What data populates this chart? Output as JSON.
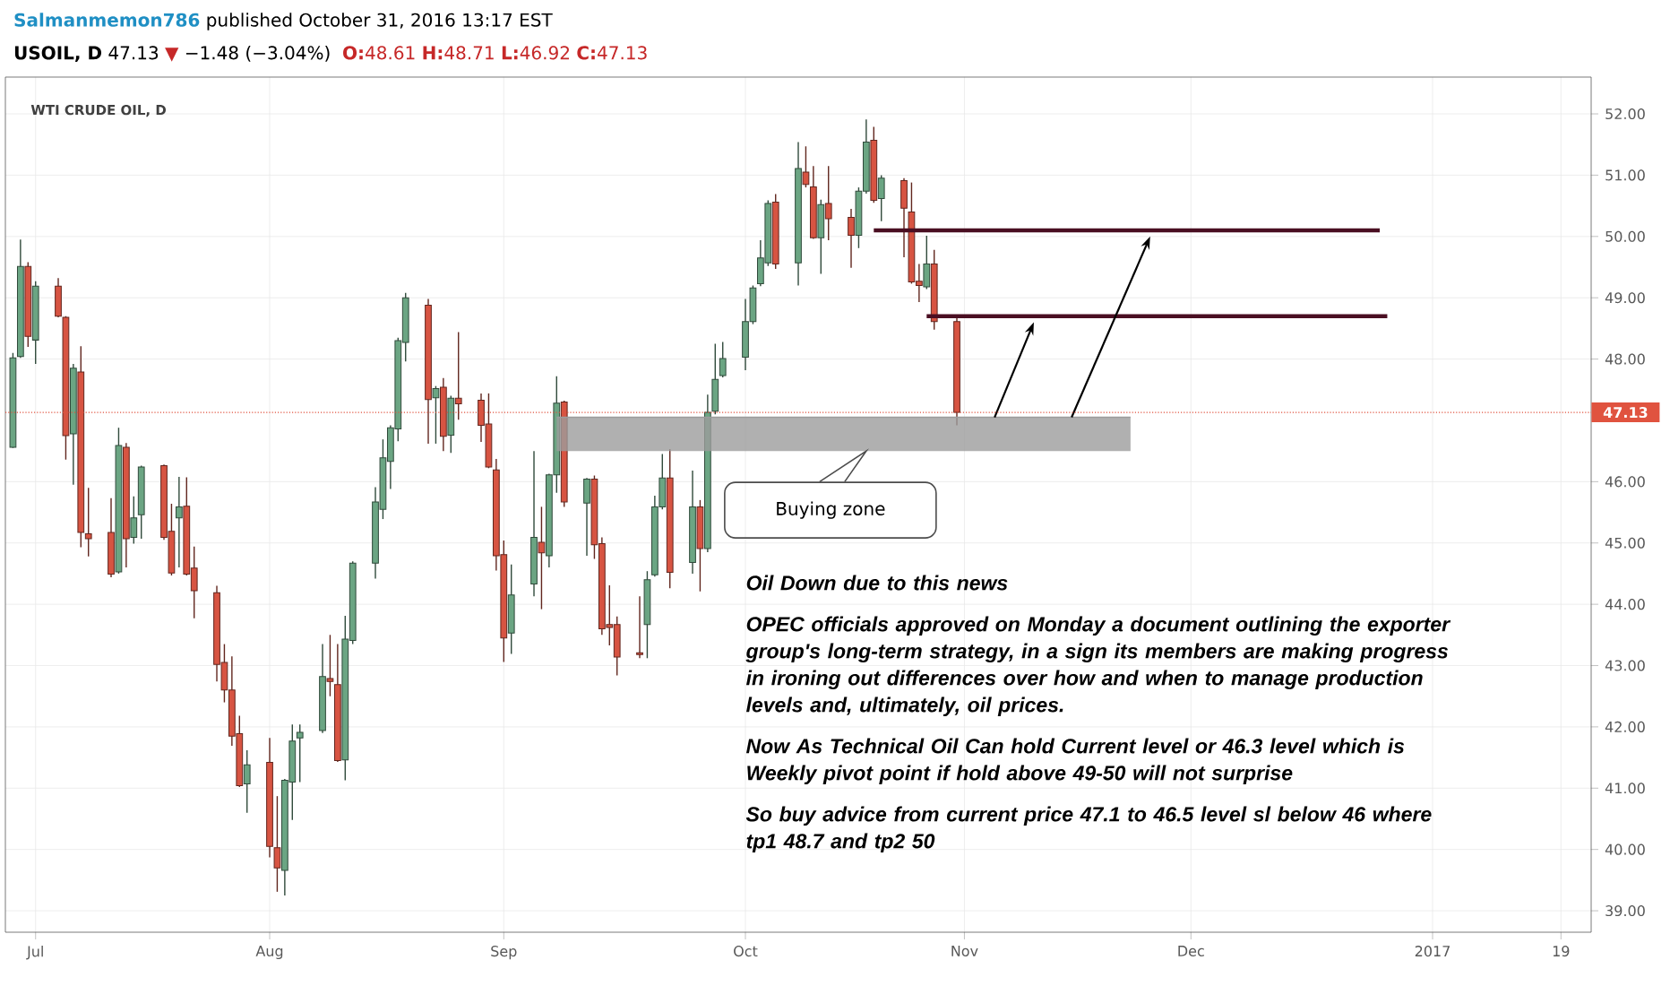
{
  "chart_data": {
    "type": "candlestick",
    "title": "WTI CRUDE OIL, D",
    "annotations": [
      "Salmanmemon786",
      "published October 31, 2016 13:17 EST",
      "**USOIL, D** 47.13",
      "▼",
      "−1.48 (−3.04%)",
      "**O:**48.61 **H:**48.71 **L:**46.92 **C:**47.13",
      {
        "text": "Buying zone",
        "x": "2016-10-19",
        "y": 46.5
      },
      "Oil Down due to this news",
      "OPEC officials approved on Monday a document outlining the exporter group's long-term strategy, in a sign its members are making progress in ironing out differences over how and when to manage production levels and, ultimately, oil prices.",
      "Now As Technical Oil Can hold Current level or 46.3 level which is Weekly pivot point if hold above 49-50 will not surprise",
      "So buy advice from current price 47.1 to 46.5 level sl below 46 where tp1 48.7 and tp2 50"
    ],
    "x": [
      "2016-06-28",
      "2016-06-29",
      "2016-06-30",
      "2016-07-01",
      "2016-07-04",
      "2016-07-05",
      "2016-07-06",
      "2016-07-07",
      "2016-07-08",
      "2016-07-11",
      "2016-07-12",
      "2016-07-13",
      "2016-07-14",
      "2016-07-15",
      "2016-07-18",
      "2016-07-19",
      "2016-07-20",
      "2016-07-21",
      "2016-07-22",
      "2016-07-25",
      "2016-07-26",
      "2016-07-27",
      "2016-07-28",
      "2016-07-29",
      "2016-08-01",
      "2016-08-02",
      "2016-08-03",
      "2016-08-04",
      "2016-08-05",
      "2016-08-08",
      "2016-08-09",
      "2016-08-10",
      "2016-08-11",
      "2016-08-12",
      "2016-08-15",
      "2016-08-16",
      "2016-08-17",
      "2016-08-18",
      "2016-08-19",
      "2016-08-22",
      "2016-08-23",
      "2016-08-24",
      "2016-08-25",
      "2016-08-26",
      "2016-08-29",
      "2016-08-30",
      "2016-08-31",
      "2016-09-01",
      "2016-09-02",
      "2016-09-05",
      "2016-09-06",
      "2016-09-07",
      "2016-09-08",
      "2016-09-09",
      "2016-09-12",
      "2016-09-13",
      "2016-09-14",
      "2016-09-15",
      "2016-09-16",
      "2016-09-19",
      "2016-09-20",
      "2016-09-21",
      "2016-09-22",
      "2016-09-23",
      "2016-09-26",
      "2016-09-27",
      "2016-09-28",
      "2016-09-29",
      "2016-09-30",
      "2016-10-03",
      "2016-10-04",
      "2016-10-05",
      "2016-10-06",
      "2016-10-07",
      "2016-10-10",
      "2016-10-11",
      "2016-10-12",
      "2016-10-13",
      "2016-10-14",
      "2016-10-17",
      "2016-10-18",
      "2016-10-19",
      "2016-10-20",
      "2016-10-21",
      "2016-10-24",
      "2016-10-25",
      "2016-10-26",
      "2016-10-27",
      "2016-10-28",
      "2016-10-31"
    ],
    "ohlc": [
      [
        46.56,
        48.1,
        46.55,
        48.02
      ],
      [
        48.04,
        49.95,
        48.02,
        49.51
      ],
      [
        49.51,
        49.58,
        48.2,
        48.37
      ],
      [
        48.31,
        49.27,
        47.92,
        49.19
      ],
      [
        49.19,
        49.32,
        48.68,
        48.7
      ],
      [
        48.68,
        48.7,
        46.36,
        46.75
      ],
      [
        46.78,
        47.92,
        45.95,
        47.85
      ],
      [
        47.79,
        48.21,
        44.93,
        45.17
      ],
      [
        45.15,
        45.9,
        44.78,
        45.07
      ],
      [
        45.17,
        45.73,
        44.44,
        44.49
      ],
      [
        44.53,
        46.88,
        44.5,
        46.59
      ],
      [
        46.56,
        46.63,
        44.6,
        45.07
      ],
      [
        45.09,
        45.76,
        44.99,
        45.41
      ],
      [
        45.46,
        46.26,
        45.07,
        46.24
      ],
      [
        46.26,
        46.28,
        45.05,
        45.09
      ],
      [
        45.19,
        45.64,
        44.47,
        44.51
      ],
      [
        45.41,
        46.08,
        44.6,
        45.59
      ],
      [
        45.6,
        46.07,
        44.47,
        44.49
      ],
      [
        44.59,
        44.94,
        43.77,
        44.22
      ],
      [
        44.19,
        44.3,
        42.74,
        43.02
      ],
      [
        43.05,
        43.35,
        42.4,
        42.6
      ],
      [
        42.6,
        43.15,
        41.69,
        41.85
      ],
      [
        41.89,
        42.18,
        41.02,
        41.04
      ],
      [
        41.07,
        41.62,
        40.6,
        41.38
      ],
      [
        41.42,
        41.82,
        39.87,
        40.05
      ],
      [
        40.03,
        40.87,
        39.31,
        39.7
      ],
      [
        39.66,
        41.15,
        39.25,
        41.13
      ],
      [
        41.1,
        42.04,
        40.48,
        41.77
      ],
      [
        41.82,
        42.04,
        41.1,
        41.91
      ],
      [
        41.94,
        43.35,
        41.9,
        42.82
      ],
      [
        42.79,
        43.5,
        42.5,
        42.74
      ],
      [
        42.69,
        43.35,
        41.43,
        41.45
      ],
      [
        41.46,
        43.81,
        41.13,
        43.43
      ],
      [
        43.41,
        44.7,
        43.35,
        44.67
      ],
      [
        44.67,
        45.91,
        44.42,
        45.67
      ],
      [
        45.55,
        46.69,
        45.39,
        46.39
      ],
      [
        46.33,
        46.92,
        45.88,
        46.88
      ],
      [
        46.86,
        48.35,
        46.66,
        48.3
      ],
      [
        48.27,
        49.08,
        47.96,
        49.0
      ],
      [
        48.88,
        48.98,
        46.62,
        47.34
      ],
      [
        47.37,
        47.56,
        46.62,
        47.52
      ],
      [
        47.54,
        47.69,
        46.5,
        46.74
      ],
      [
        46.76,
        47.4,
        46.47,
        47.36
      ],
      [
        47.36,
        48.44,
        47.01,
        47.27
      ],
      [
        47.33,
        47.44,
        46.65,
        46.92
      ],
      [
        46.94,
        47.44,
        46.22,
        46.24
      ],
      [
        46.19,
        46.37,
        44.55,
        44.79
      ],
      [
        44.81,
        45.04,
        43.06,
        43.45
      ],
      [
        43.53,
        44.65,
        43.19,
        44.15
      ],
      [
        44.33,
        46.5,
        44.13,
        45.09
      ],
      [
        45.01,
        45.59,
        43.92,
        44.84
      ],
      [
        44.79,
        46.13,
        44.6,
        46.11
      ],
      [
        46.11,
        47.72,
        45.82,
        47.28
      ],
      [
        47.3,
        47.32,
        45.59,
        45.67
      ],
      [
        45.65,
        46.06,
        44.79,
        46.04
      ],
      [
        46.04,
        46.1,
        44.74,
        44.97
      ],
      [
        44.99,
        45.09,
        43.5,
        43.6
      ],
      [
        43.67,
        44.31,
        43.33,
        43.62
      ],
      [
        43.67,
        43.8,
        42.84,
        43.14
      ],
      [
        43.21,
        44.13,
        43.12,
        43.18
      ],
      [
        43.67,
        44.54,
        43.12,
        44.4
      ],
      [
        44.48,
        45.77,
        44.45,
        45.59
      ],
      [
        45.59,
        46.45,
        45.55,
        46.06
      ],
      [
        46.06,
        46.53,
        44.26,
        44.52
      ],
      [
        44.68,
        46.18,
        44.5,
        45.59
      ],
      [
        45.59,
        45.7,
        44.21,
        44.91
      ],
      [
        44.91,
        47.42,
        44.85,
        47.13
      ],
      [
        47.15,
        48.25,
        47.1,
        47.67
      ],
      [
        47.73,
        48.28,
        47.7,
        48.01
      ],
      [
        48.03,
        48.98,
        47.82,
        48.61
      ],
      [
        48.61,
        49.2,
        48.57,
        49.16
      ],
      [
        49.23,
        49.94,
        49.19,
        49.65
      ],
      [
        49.57,
        50.59,
        49.52,
        50.54
      ],
      [
        50.56,
        50.69,
        49.47,
        49.55
      ],
      [
        49.57,
        51.54,
        49.2,
        51.11
      ],
      [
        51.05,
        51.47,
        50.8,
        50.85
      ],
      [
        50.81,
        51.15,
        49.96,
        49.98
      ],
      [
        49.98,
        50.6,
        49.39,
        50.52
      ],
      [
        50.54,
        51.15,
        49.94,
        50.29
      ],
      [
        50.31,
        50.45,
        49.49,
        50.02
      ],
      [
        50.02,
        50.8,
        49.81,
        50.74
      ],
      [
        50.74,
        51.91,
        50.7,
        51.54
      ],
      [
        51.57,
        51.79,
        50.55,
        50.59
      ],
      [
        50.62,
        51.0,
        50.25,
        50.95
      ],
      [
        50.91,
        50.95,
        49.66,
        50.46
      ],
      [
        50.4,
        50.88,
        49.23,
        49.26
      ],
      [
        49.27,
        49.55,
        48.93,
        49.2
      ],
      [
        49.18,
        50.01,
        49.14,
        49.55
      ],
      [
        49.55,
        49.78,
        48.48,
        48.61
      ],
      [
        48.61,
        48.71,
        46.92,
        47.13
      ]
    ],
    "colors": [
      "#6ba583",
      "#6ba583",
      "#d75442",
      "#6ba583",
      "#d75442",
      "#d75442",
      "#6ba583",
      "#d75442",
      "#d75442",
      "#d75442",
      "#6ba583",
      "#d75442",
      "#6ba583",
      "#6ba583",
      "#d75442",
      "#d75442",
      "#6ba583",
      "#d75442",
      "#d75442",
      "#d75442",
      "#d75442",
      "#d75442",
      "#d75442",
      "#6ba583",
      "#d75442",
      "#d75442",
      "#6ba583",
      "#6ba583",
      "#6ba583",
      "#6ba583",
      "#d75442",
      "#d75442",
      "#6ba583",
      "#6ba583",
      "#6ba583",
      "#6ba583",
      "#6ba583",
      "#6ba583",
      "#6ba583",
      "#d75442",
      "#6ba583",
      "#d75442",
      "#6ba583",
      "#d75442",
      "#d75442",
      "#d75442",
      "#d75442",
      "#d75442",
      "#6ba583",
      "#6ba583",
      "#d75442",
      "#6ba583",
      "#6ba583",
      "#d75442",
      "#6ba583",
      "#d75442",
      "#d75442",
      "#d75442",
      "#d75442",
      "#d75442",
      "#6ba583",
      "#6ba583",
      "#6ba583",
      "#d75442",
      "#6ba583",
      "#d75442",
      "#6ba583",
      "#6ba583",
      "#6ba583",
      "#6ba583",
      "#6ba583",
      "#6ba583",
      "#6ba583",
      "#d75442",
      "#6ba583",
      "#d75442",
      "#d75442",
      "#6ba583",
      "#d75442",
      "#d75442",
      "#6ba583",
      "#6ba583",
      "#d75442",
      "#6ba583",
      "#d75442",
      "#d75442",
      "#d75442",
      "#6ba583",
      "#d75442",
      "#d75442"
    ],
    "series": [
      {
        "type": "line",
        "color": "#9c9c9c",
        "x": [
          "2016-09-08",
          "2016-11-23"
        ],
        "values": [
          47.05,
          47.05
        ],
        "lower": [
          46.5,
          46.5
        ],
        "upper": [
          47.05,
          47.05
        ]
      },
      {
        "type": "line",
        "color": "#4a0f22",
        "x": [
          "2016-10-20",
          "2016-12-26"
        ],
        "values": [
          50.1,
          50.1
        ]
      },
      {
        "type": "line",
        "color": "#4a0f22",
        "x": [
          "2016-10-27",
          "2016-12-27"
        ],
        "values": [
          48.7,
          48.7
        ]
      }
    ],
    "ref_lines": [
      {
        "axis": "y",
        "value": 47.13,
        "label": "47.13",
        "color": "#e0533f",
        "line_style": "dotted"
      }
    ],
    "xlim": [
      "2016-06-27",
      "2017-01-23"
    ],
    "ylim": [
      38.65,
      52.6
    ],
    "xticks": [
      {
        "value": "2016-07-01",
        "label": "Jul"
      },
      {
        "value": "2016-08-01",
        "label": "Aug"
      },
      {
        "value": "2016-09-01",
        "label": "Sep"
      },
      {
        "value": "2016-10-03",
        "label": "Oct"
      },
      {
        "value": "2016-11-01",
        "label": "Nov"
      },
      {
        "value": "2016-12-01",
        "label": "Dec"
      },
      {
        "value": "2017-01-02",
        "label": "2017"
      },
      {
        "value": "2017-01-19",
        "label": "19"
      }
    ],
    "yticks": [
      {
        "value": 39,
        "label": "39.00"
      },
      {
        "value": 40,
        "label": "40.00"
      },
      {
        "value": 41,
        "label": "41.00"
      },
      {
        "value": 42,
        "label": "42.00"
      },
      {
        "value": 43,
        "label": "43.00"
      },
      {
        "value": 44,
        "label": "44.00"
      },
      {
        "value": 45,
        "label": "45.00"
      },
      {
        "value": 46,
        "label": "46.00"
      },
      {
        "value": 48,
        "label": "48.00"
      },
      {
        "value": 49,
        "label": "49.00"
      },
      {
        "value": 50,
        "label": "50.00"
      },
      {
        "value": 51,
        "label": "51.00"
      },
      {
        "value": 52,
        "label": "52.00"
      }
    ],
    "grid": true
  }
}
